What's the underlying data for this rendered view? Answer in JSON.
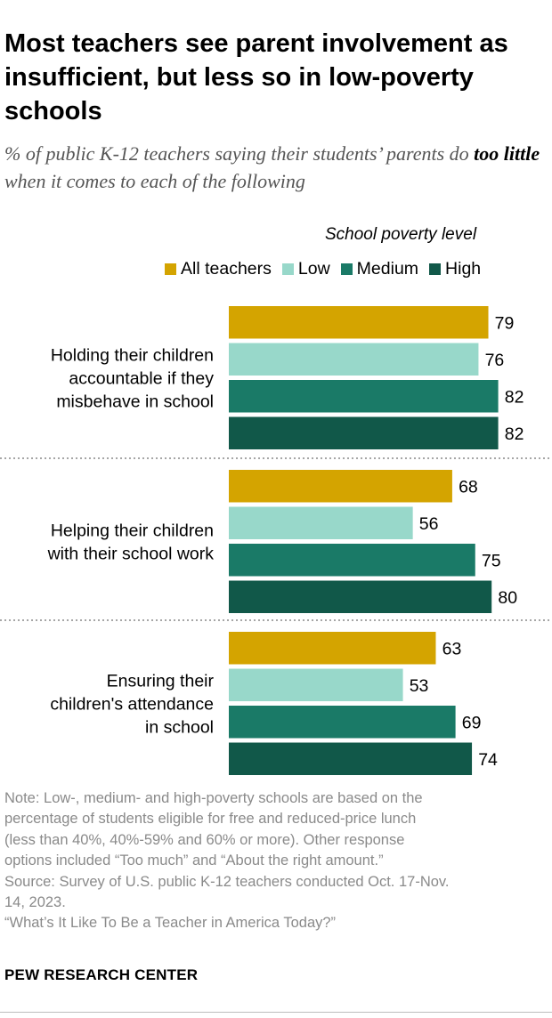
{
  "title": "Most teachers see parent involvement as insufficient, but less so in low-poverty schools",
  "subtitle": {
    "part1": "% of public K-12 teachers saying their students’ parents do ",
    "emphasis": "too little",
    "part2": " when it comes to each of the following"
  },
  "legend_title": "School poverty level",
  "colors": {
    "all_teachers": "#d4a400",
    "low": "#98d8ca",
    "medium": "#1a7a67",
    "high": "#115849"
  },
  "chart_data": {
    "type": "bar",
    "orientation": "horizontal",
    "categories": [
      [
        "Holding their children",
        "accountable if they",
        "misbehave in school"
      ],
      [
        "Helping their children",
        "with their school work"
      ],
      [
        "Ensuring their",
        "children's attendance",
        "in school"
      ]
    ],
    "series": [
      {
        "name": "All teachers",
        "values": [
          79,
          68,
          63
        ]
      },
      {
        "name": "Low",
        "values": [
          76,
          56,
          53
        ]
      },
      {
        "name": "Medium",
        "values": [
          82,
          75,
          69
        ]
      },
      {
        "name": "High",
        "values": [
          82,
          80,
          74
        ]
      }
    ],
    "xlim": [
      0,
      100
    ],
    "data_labels": true,
    "legend_position": "top-right",
    "grid": false
  },
  "notes": [
    "Note: Low-, medium- and high-poverty schools are based on the",
    "percentage of students eligible for free and reduced-price lunch",
    "(less than 40%, 40%-59% and 60% or more). Other response",
    "options included “Too much” and “About the right amount.”",
    "Source: Survey of U.S. public K-12 teachers conducted Oct. 17-Nov.",
    "14, 2023.",
    "“What’s It Like To Be a Teacher in America Today?”"
  ],
  "brand": "PEW RESEARCH CENTER"
}
